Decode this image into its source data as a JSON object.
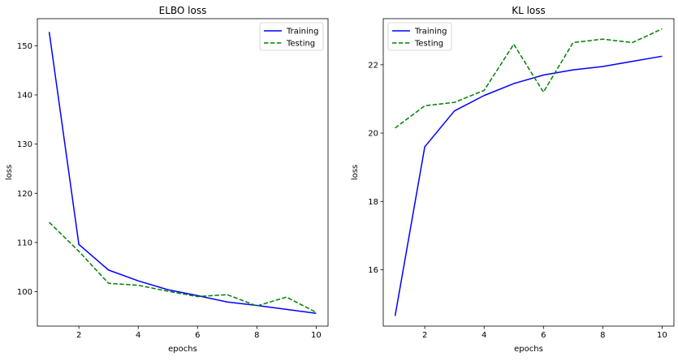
{
  "figure": {
    "background": "#ffffff"
  },
  "chart_data": [
    {
      "type": "line",
      "title": "ELBO loss",
      "xlabel": "epochs",
      "ylabel": "loss",
      "xlim": [
        0.6,
        10.4
      ],
      "ylim": [
        93.0,
        155.5
      ],
      "xticks": [
        2,
        4,
        6,
        8,
        10
      ],
      "yticks": [
        100,
        110,
        120,
        130,
        140,
        150
      ],
      "x": [
        1,
        2,
        3,
        4,
        5,
        6,
        7,
        8,
        9,
        10
      ],
      "legend": "top-right",
      "grid": false,
      "series": [
        {
          "name": "Training",
          "color": "#0000ff",
          "linestyle": "solid",
          "values": [
            152.8,
            109.6,
            104.4,
            102.2,
            100.4,
            99.2,
            97.9,
            97.2,
            96.4,
            95.6
          ]
        },
        {
          "name": "Testing",
          "color": "#008000",
          "linestyle": "dashed",
          "values": [
            114.1,
            108.2,
            101.7,
            101.3,
            100.1,
            99.0,
            99.4,
            97.1,
            98.9,
            95.8
          ]
        }
      ]
    },
    {
      "type": "line",
      "title": "KL loss",
      "xlabel": "epochs",
      "ylabel": "loss",
      "xlim": [
        0.6,
        10.4
      ],
      "ylim": [
        14.35,
        23.35
      ],
      "xticks": [
        2,
        4,
        6,
        8,
        10
      ],
      "yticks": [
        16,
        18,
        20,
        22
      ],
      "x": [
        1,
        2,
        3,
        4,
        5,
        6,
        7,
        8,
        9,
        10
      ],
      "legend": "top-left",
      "grid": false,
      "series": [
        {
          "name": "Training",
          "color": "#0000ff",
          "linestyle": "solid",
          "values": [
            14.65,
            19.6,
            20.65,
            21.1,
            21.45,
            21.7,
            21.85,
            21.95,
            22.1,
            22.25
          ]
        },
        {
          "name": "Testing",
          "color": "#008000",
          "linestyle": "dashed",
          "values": [
            20.15,
            20.8,
            20.9,
            21.25,
            22.6,
            21.2,
            22.65,
            22.75,
            22.65,
            23.05
          ]
        }
      ]
    }
  ]
}
